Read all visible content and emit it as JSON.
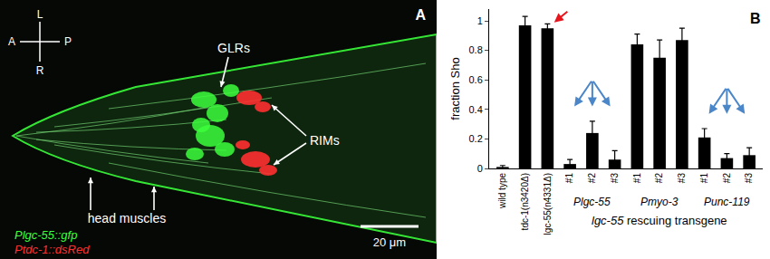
{
  "image_panel": {
    "panel_label": "A",
    "compass": {
      "up": "L",
      "left": "A",
      "right": "P",
      "down": "R"
    },
    "labels": {
      "glr": "GLRs",
      "rim": "RIMs",
      "muscles": "head muscles"
    },
    "legend": [
      {
        "text": "Plgc-55::gfp",
        "color": "#3cff3c"
      },
      {
        "text": "Ptdc-1::dsRed",
        "color": "#ff3030"
      }
    ],
    "scale_bar": "20 μm"
  },
  "chart_data": {
    "type": "bar",
    "annotations": [
      "B"
    ],
    "y_label": "fraction Sho",
    "x_label": "lgc-55 rescuing transgene",
    "categories": [
      "wild type",
      "tdc-1(n3420Δ)",
      "lgc-55(n4331Δ)",
      "#1",
      "#2",
      "#3",
      "#1",
      "#2",
      "#3",
      "#1",
      "#2",
      "#3"
    ],
    "groups": [
      null,
      null,
      null,
      "Plgc-55",
      "Plgc-55",
      "Plgc-55",
      "Pmyo-3",
      "Pmyo-3",
      "Pmyo-3",
      "Punc-119",
      "Punc-119",
      "Punc-119"
    ],
    "values": [
      0.01,
      0.97,
      0.95,
      0.03,
      0.24,
      0.06,
      0.84,
      0.75,
      0.87,
      0.21,
      0.07,
      0.09
    ],
    "errors": [
      0.01,
      0.06,
      0.03,
      0.03,
      0.08,
      0.06,
      0.07,
      0.12,
      0.08,
      0.06,
      0.03,
      0.05
    ],
    "color": "#000000",
    "ylim": [
      0,
      1.08
    ],
    "yticks": [
      0,
      0.2,
      0.4,
      0.6,
      0.8,
      1
    ],
    "grid": false
  }
}
